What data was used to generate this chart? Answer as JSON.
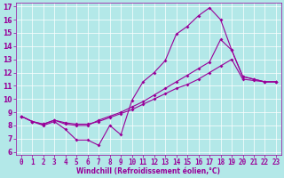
{
  "xlabel": "Windchill (Refroidissement éolien,°C)",
  "bg_color": "#b3e8e8",
  "line_color": "#990099",
  "grid_color": "#ffffff",
  "xlim": [
    -0.5,
    23.5
  ],
  "ylim": [
    5.8,
    17.3
  ],
  "xticks": [
    0,
    1,
    2,
    3,
    4,
    5,
    6,
    7,
    8,
    9,
    10,
    11,
    12,
    13,
    14,
    15,
    16,
    17,
    18,
    19,
    20,
    21,
    22,
    23
  ],
  "yticks": [
    6,
    7,
    8,
    9,
    10,
    11,
    12,
    13,
    14,
    15,
    16,
    17
  ],
  "line1_x": [
    0,
    1,
    2,
    3,
    4,
    5,
    6,
    7,
    8,
    9,
    10,
    11,
    12,
    13,
    14,
    15,
    16,
    17,
    18,
    19,
    20,
    21,
    22,
    23
  ],
  "line1_y": [
    8.7,
    8.3,
    8.0,
    8.3,
    7.7,
    6.9,
    6.9,
    6.5,
    8.0,
    7.3,
    9.9,
    11.3,
    12.0,
    12.9,
    14.9,
    15.5,
    16.3,
    16.9,
    16.0,
    13.7,
    11.7,
    11.5,
    11.3,
    11.3
  ],
  "line2_x": [
    0,
    1,
    2,
    3,
    4,
    5,
    6,
    7,
    8,
    9,
    10,
    11,
    12,
    13,
    14,
    15,
    16,
    17,
    18,
    19,
    20,
    21,
    22,
    23
  ],
  "line2_y": [
    8.7,
    8.3,
    8.1,
    8.4,
    8.1,
    8.0,
    8.0,
    8.4,
    8.7,
    9.0,
    9.4,
    9.8,
    10.3,
    10.8,
    11.3,
    11.8,
    12.3,
    12.8,
    14.5,
    13.7,
    11.7,
    11.5,
    11.3,
    11.3
  ],
  "line3_x": [
    0,
    1,
    2,
    3,
    4,
    5,
    6,
    7,
    8,
    9,
    10,
    11,
    12,
    13,
    14,
    15,
    16,
    17,
    18,
    19,
    20,
    21,
    22,
    23
  ],
  "line3_y": [
    8.7,
    8.3,
    8.1,
    8.4,
    8.2,
    8.1,
    8.1,
    8.3,
    8.6,
    8.9,
    9.2,
    9.6,
    10.0,
    10.4,
    10.8,
    11.1,
    11.5,
    12.0,
    12.5,
    13.0,
    11.5,
    11.4,
    11.3,
    11.3
  ],
  "tick_fontsize": 5.5,
  "xlabel_fontsize": 5.5,
  "marker_size": 2.0,
  "line_width": 0.8
}
